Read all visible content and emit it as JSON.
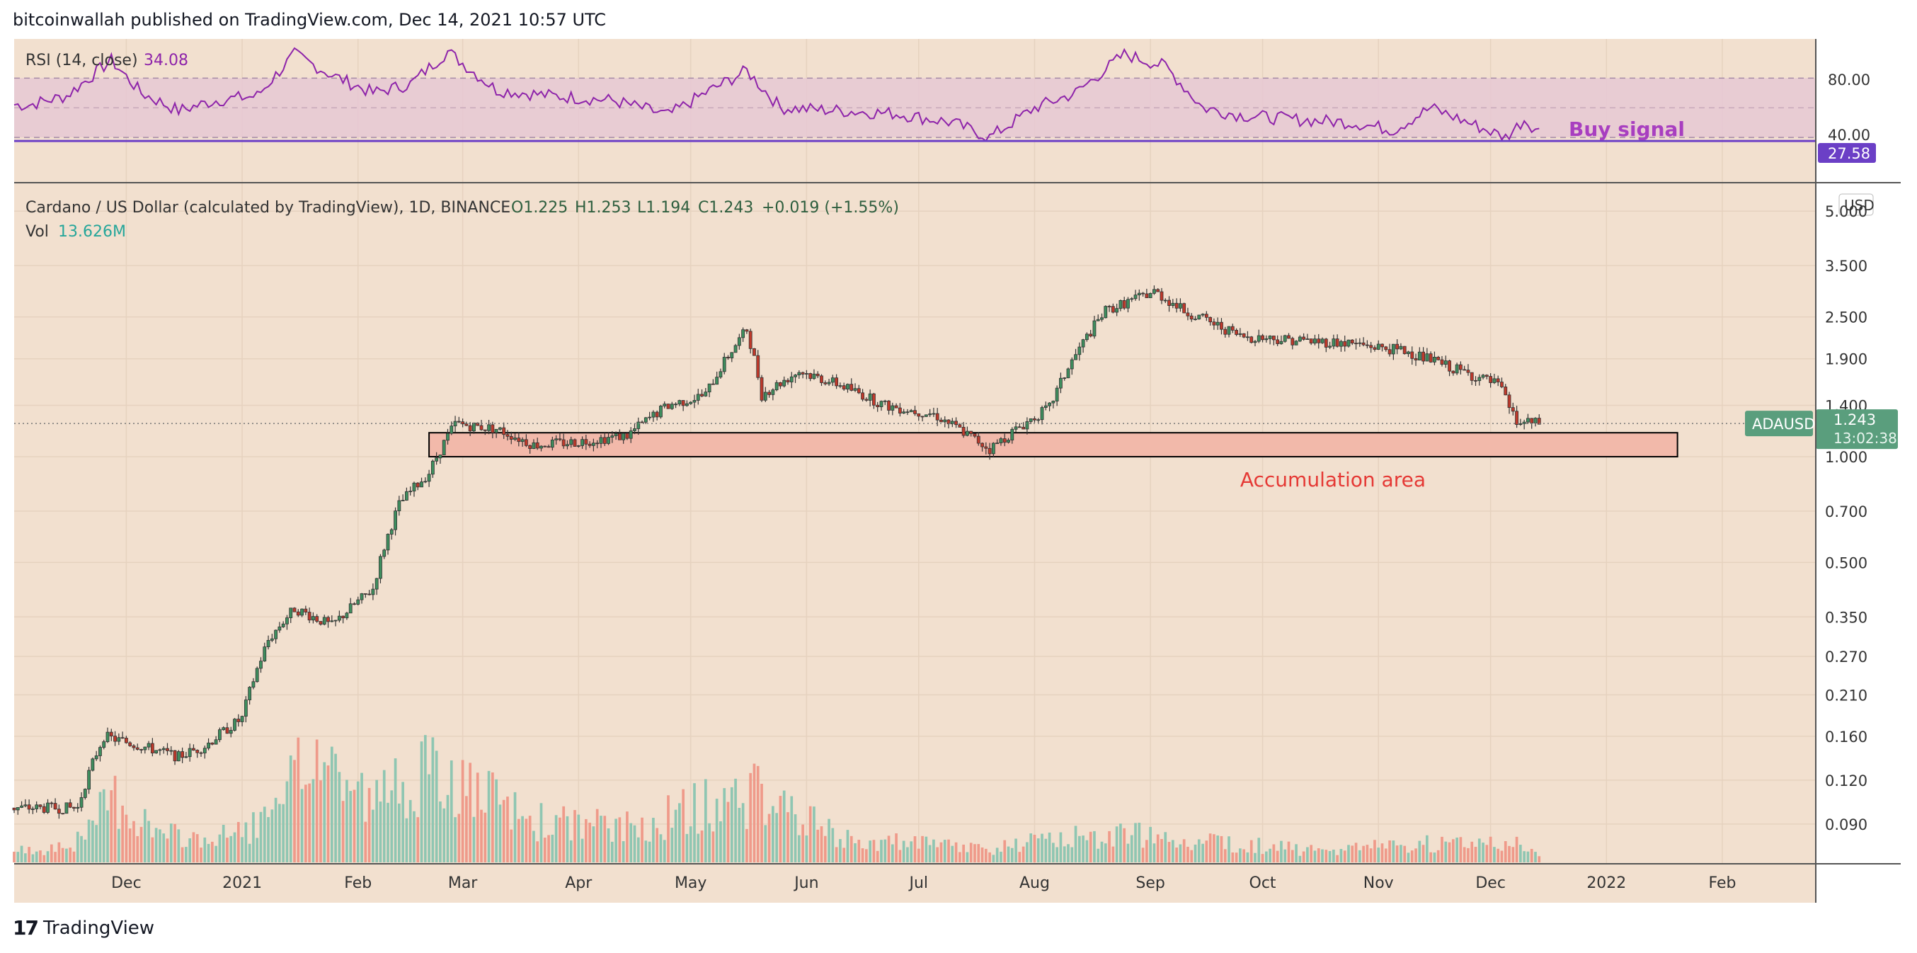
{
  "header": {
    "publisher_line": "bitcoinwallah published on TradingView.com, Dec 14, 2021 10:57 UTC"
  },
  "footer": {
    "brand": "TradingView",
    "logo_text": "17"
  },
  "colors": {
    "background": "#f2e0cf",
    "rsi_line": "#8e24aa",
    "rsi_band": "#e6c8d4",
    "up_candle": "#3e8e5e",
    "down_candle": "#c0392b",
    "volume_up": "#8fc6b2",
    "volume_down": "#ef9a8a",
    "accumulation_fill": "#f2b9aa",
    "ticker_badge": "#5a9e7d",
    "rsi_badge": "#6b3fc6"
  },
  "chart_data": [
    {
      "type": "line",
      "panel": "RSI",
      "title": "RSI (14, close)",
      "current_value_label": "34.08",
      "price_scale_badge": "27.58",
      "y_ticks": [
        "80.00",
        "40.00"
      ],
      "band": [
        30,
        70
      ],
      "annotation": "Buy signal",
      "x": [
        "2020-11-05",
        "2020-11-15",
        "2020-11-27",
        "2020-12-05",
        "2020-12-15",
        "2020-12-25",
        "2021-01-05",
        "2021-01-15",
        "2021-01-25",
        "2021-02-05",
        "2021-02-15",
        "2021-02-25",
        "2021-03-10",
        "2021-03-25",
        "2021-04-10",
        "2021-04-25",
        "2021-05-05",
        "2021-05-16",
        "2021-05-25",
        "2021-06-10",
        "2021-06-25",
        "2021-07-10",
        "2021-07-20",
        "2021-08-01",
        "2021-08-12",
        "2021-08-25",
        "2021-09-05",
        "2021-09-15",
        "2021-09-25",
        "2021-10-10",
        "2021-10-25",
        "2021-11-05",
        "2021-11-15",
        "2021-11-25",
        "2021-12-05",
        "2021-12-10",
        "2021-12-14"
      ],
      "values": [
        52,
        58,
        82,
        60,
        48,
        55,
        58,
        86,
        72,
        60,
        66,
        88,
        62,
        58,
        55,
        45,
        60,
        75,
        50,
        48,
        46,
        40,
        30,
        50,
        60,
        86,
        78,
        50,
        45,
        42,
        40,
        35,
        50,
        40,
        30,
        42,
        34
      ]
    },
    {
      "type": "candlestick",
      "panel": "price",
      "title": "Cardano / US Dollar (calculated by TradingView), 1D, BINANCE",
      "ohlc_labels": {
        "o": "O1.225",
        "h": "H1.253",
        "l": "L1.194",
        "c": "C1.243",
        "change": "+0.019 (+1.55%)"
      },
      "volume_label": "Vol",
      "volume_value": "13.626M",
      "currency": "USD",
      "scale": "log",
      "ticker": "ADAUSD",
      "last_price": "1.243",
      "countdown": "13:02:38",
      "y_ticks": [
        "5.000",
        "3.500",
        "2.500",
        "1.900",
        "1.400",
        "1.000",
        "0.700",
        "0.500",
        "0.350",
        "0.270",
        "0.210",
        "0.160",
        "0.120",
        "0.090"
      ],
      "y_tick_values": [
        5.0,
        3.5,
        2.5,
        1.9,
        1.4,
        1.0,
        0.7,
        0.5,
        0.35,
        0.27,
        0.21,
        0.16,
        0.12,
        0.09
      ],
      "x_ticks": [
        "Dec",
        "2021",
        "Feb",
        "Mar",
        "Apr",
        "May",
        "Jun",
        "Jul",
        "Aug",
        "Sep",
        "Oct",
        "Nov",
        "Dec",
        "2022",
        "Feb"
      ],
      "x_tick_dates": [
        "2020-12-01",
        "2021-01-01",
        "2021-02-01",
        "2021-03-01",
        "2021-04-01",
        "2021-05-01",
        "2021-06-01",
        "2021-07-01",
        "2021-08-01",
        "2021-09-01",
        "2021-10-01",
        "2021-11-01",
        "2021-12-01",
        "2022-01-01",
        "2022-02-01"
      ],
      "accumulation_zone": {
        "label": "Accumulation area",
        "from": "2021-02-20",
        "to": "2022-01-20",
        "low": 1.0,
        "high": 1.17
      },
      "price_path": {
        "dates": [
          "2020-11-01",
          "2020-11-18",
          "2020-11-25",
          "2020-12-05",
          "2020-12-15",
          "2020-12-22",
          "2021-01-01",
          "2021-01-08",
          "2021-01-15",
          "2021-01-25",
          "2021-02-05",
          "2021-02-12",
          "2021-02-20",
          "2021-02-27",
          "2021-03-10",
          "2021-03-20",
          "2021-03-31",
          "2021-04-14",
          "2021-04-25",
          "2021-05-05",
          "2021-05-16",
          "2021-05-20",
          "2021-05-30",
          "2021-06-10",
          "2021-06-22",
          "2021-07-05",
          "2021-07-20",
          "2021-08-05",
          "2021-08-20",
          "2021-09-02",
          "2021-09-10",
          "2021-09-25",
          "2021-10-10",
          "2021-10-25",
          "2021-11-08",
          "2021-11-20",
          "2021-12-03",
          "2021-12-08",
          "2021-12-14"
        ],
        "closes": [
          0.1,
          0.1,
          0.16,
          0.15,
          0.14,
          0.15,
          0.18,
          0.3,
          0.37,
          0.33,
          0.42,
          0.73,
          0.9,
          1.24,
          1.2,
          1.08,
          1.1,
          1.15,
          1.4,
          1.5,
          2.3,
          1.5,
          1.75,
          1.6,
          1.4,
          1.32,
          1.05,
          1.38,
          2.6,
          2.95,
          2.6,
          2.2,
          2.15,
          2.1,
          2.0,
          1.8,
          1.6,
          1.25,
          1.243
        ]
      },
      "volume": {
        "dates": [
          "2020-11-05",
          "2020-11-20",
          "2020-11-27",
          "2020-12-10",
          "2020-12-25",
          "2021-01-10",
          "2021-01-20",
          "2021-02-05",
          "2021-02-15",
          "2021-02-25",
          "2021-03-05",
          "2021-03-20",
          "2021-04-15",
          "2021-05-05",
          "2021-05-20",
          "2021-06-10",
          "2021-07-01",
          "2021-07-20",
          "2021-08-15",
          "2021-09-01",
          "2021-09-15",
          "2021-10-15",
          "2021-11-10",
          "2021-12-04",
          "2021-12-14"
        ],
        "values": [
          5,
          10,
          30,
          12,
          10,
          20,
          50,
          25,
          40,
          35,
          30,
          18,
          15,
          25,
          30,
          10,
          8,
          6,
          12,
          12,
          10,
          5,
          8,
          10,
          4
        ]
      }
    }
  ]
}
